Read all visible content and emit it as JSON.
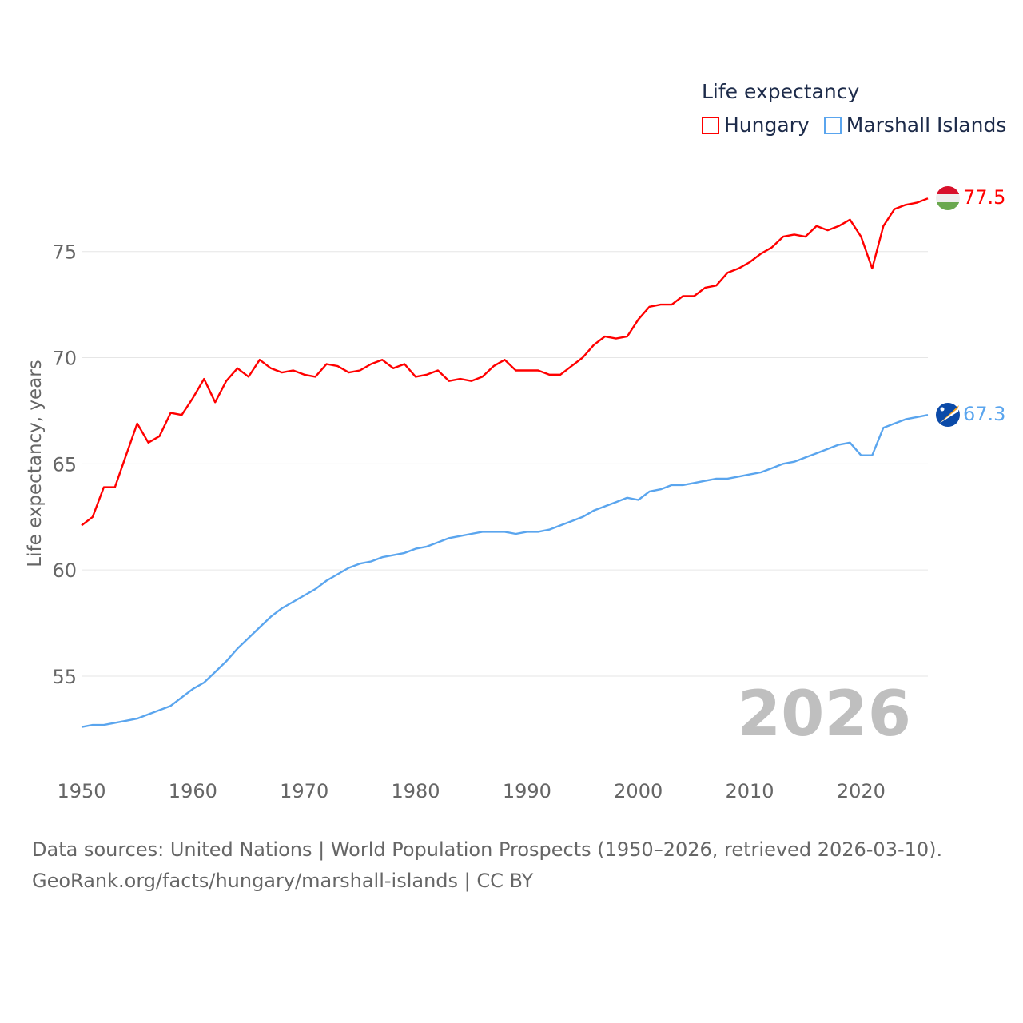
{
  "legend": {
    "title": "Life expectancy",
    "items": [
      {
        "label": "Hungary",
        "color": "#ff0000"
      },
      {
        "label": "Marshall Islands",
        "color": "#5aa5ee"
      }
    ]
  },
  "sources": {
    "line1": "Data sources: United Nations | World Population Prospects (1950–2026, retrieved 2026-03-10).",
    "line2": "GeoRank.org/facts/hungary/marshall-islands | CC BY"
  },
  "chart_data": {
    "type": "line",
    "title": "Life expectancy",
    "xlabel": "",
    "ylabel": "Life expectancy, years",
    "year_label": "2026",
    "xlim": [
      1950,
      2026
    ],
    "ylim": [
      51.8,
      78
    ],
    "xticks": [
      1950,
      1960,
      1970,
      1980,
      1990,
      2000,
      2010,
      2020
    ],
    "yticks": [
      55,
      60,
      65,
      70,
      75
    ],
    "grid": true,
    "legend_position": "top-right",
    "x_start": 1950,
    "series": [
      {
        "name": "Hungary",
        "color": "#ff0000",
        "end_label": "77.5",
        "flag": "hungary-flag",
        "values": [
          62.1,
          62.5,
          63.9,
          63.9,
          65.4,
          66.9,
          66.0,
          66.3,
          67.4,
          67.3,
          68.1,
          69.0,
          67.9,
          68.9,
          69.5,
          69.1,
          69.9,
          69.5,
          69.3,
          69.4,
          69.2,
          69.1,
          69.7,
          69.6,
          69.3,
          69.4,
          69.7,
          69.9,
          69.5,
          69.7,
          69.1,
          69.2,
          69.4,
          68.9,
          69.0,
          68.9,
          69.1,
          69.6,
          69.9,
          69.4,
          69.4,
          69.4,
          69.2,
          69.2,
          69.6,
          70.0,
          70.6,
          71.0,
          70.9,
          71.0,
          71.8,
          72.4,
          72.5,
          72.5,
          72.9,
          72.9,
          73.3,
          73.4,
          74.0,
          74.2,
          74.5,
          74.9,
          75.2,
          75.7,
          75.8,
          75.7,
          76.2,
          76.0,
          76.2,
          76.5,
          75.7,
          74.2,
          76.2,
          77.0,
          77.2,
          77.3,
          77.5
        ]
      },
      {
        "name": "Marshall Islands",
        "color": "#5aa5ee",
        "end_label": "67.3",
        "flag": "marshall-islands-flag",
        "values": [
          52.6,
          52.7,
          52.7,
          52.8,
          52.9,
          53.0,
          53.2,
          53.4,
          53.6,
          54.0,
          54.4,
          54.7,
          55.2,
          55.7,
          56.3,
          56.8,
          57.3,
          57.8,
          58.2,
          58.5,
          58.8,
          59.1,
          59.5,
          59.8,
          60.1,
          60.3,
          60.4,
          60.6,
          60.7,
          60.8,
          61.0,
          61.1,
          61.3,
          61.5,
          61.6,
          61.7,
          61.8,
          61.8,
          61.8,
          61.7,
          61.8,
          61.8,
          61.9,
          62.1,
          62.3,
          62.5,
          62.8,
          63.0,
          63.2,
          63.4,
          63.3,
          63.7,
          63.8,
          64.0,
          64.0,
          64.1,
          64.2,
          64.3,
          64.3,
          64.4,
          64.5,
          64.6,
          64.8,
          65.0,
          65.1,
          65.3,
          65.5,
          65.7,
          65.9,
          66.0,
          65.4,
          65.4,
          66.7,
          66.9,
          67.1,
          67.2,
          67.3
        ]
      }
    ]
  }
}
